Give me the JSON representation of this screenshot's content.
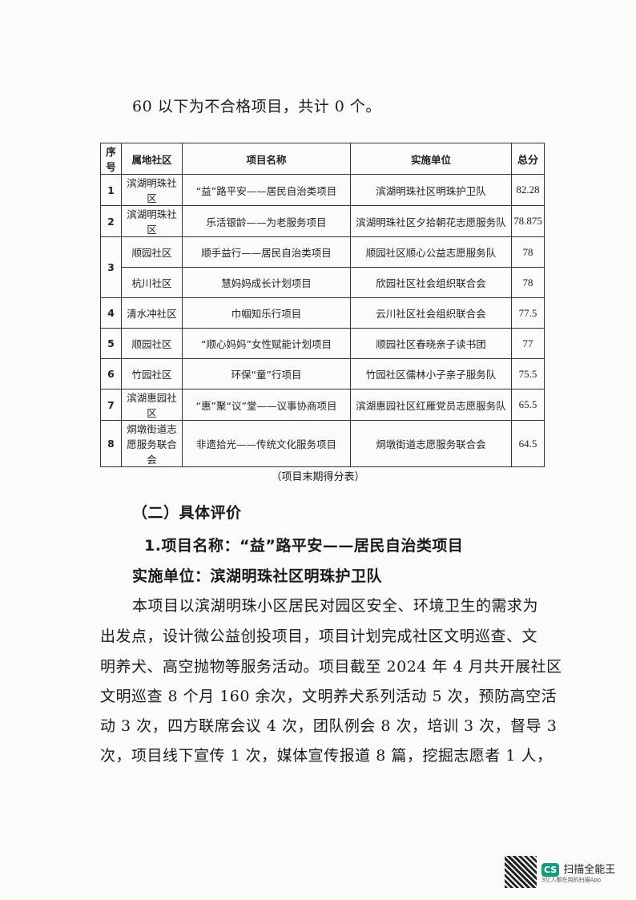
{
  "intro": "60 以下为不合格项目，共计 0 个。",
  "table": {
    "headers": [
      "序号",
      "属地社区",
      "项目名称",
      "实施单位",
      "总分"
    ],
    "rows": [
      {
        "no": "1",
        "community": "滨湖明珠社区",
        "project": "“益”路平安——居民自治类项目",
        "unit": "滨湖明珠社区明珠护卫队",
        "score": "82.28"
      },
      {
        "no": "2",
        "community": "滨湖明珠社区",
        "project": "乐活银龄——为老服务项目",
        "unit": "滨湖明珠社区夕拾朝花志愿服务队",
        "score": "78.875"
      },
      {
        "no": "3",
        "community": "顺园社区",
        "project": "顺手益行——居民自治类项目",
        "unit": "顺园社区顺心公益志愿服务队",
        "score": "78"
      },
      {
        "no": "",
        "community": "杭川社区",
        "project": "慧妈妈成长计划项目",
        "unit": "欣园社区社会组织联合会",
        "score": "78"
      },
      {
        "no": "4",
        "community": "清水冲社区",
        "project": "巾帼知乐行项目",
        "unit": "云川社区社会组织联合会",
        "score": "77.5"
      },
      {
        "no": "5",
        "community": "顺园社区",
        "project": "“顺心妈妈”女性赋能计划项目",
        "unit": "顺园社区春晓亲子读书团",
        "score": "77"
      },
      {
        "no": "6",
        "community": "竹园社区",
        "project": "环保“童”行项目",
        "unit": "竹园社区儒林小子亲子服务队",
        "score": "75.5"
      },
      {
        "no": "7",
        "community": "滨湖惠园社区",
        "project": "“惠”聚“议”堂——议事协商项目",
        "unit": "滨湖惠园社区红雁党员志愿服务队",
        "score": "65.5"
      },
      {
        "no": "8",
        "community": "烔墩街道志愿服务联合会",
        "project": "非遗拾光——传统文化服务项目",
        "unit": "烔墩街道志愿服务联合会",
        "score": "64.5"
      }
    ],
    "caption": "（项目末期得分表）"
  },
  "section": "（二）具体评价",
  "item_title": "1.项目名称：“益”路平安——居民自治类项目",
  "unit_line": "实施单位：滨湖明珠社区明珠护卫队",
  "paragraph": [
    "本项目以滨湖明珠小区居民对园区安全、环境卫生的需求为",
    "出发点，设计微公益创投项目，项目计划完成社区文明巡查、文",
    "明养犬、高空抛物等服务活动。项目截至 2024 年 4 月共开展社区",
    "文明巡查 8 个月 160 余次，文明养犬系列活动 5 次，预防高空活",
    "动 3 次，四方联席会议 4 次，团队例会 8 次，培训 3 次，督导 3",
    "次，项目线下宣传 1 次，媒体宣传报道 8 篇，挖掘志愿者 1 人，"
  ],
  "watermark": {
    "logo": "CS",
    "name": "扫描全能王",
    "slogan": "3亿人都在用的扫描App",
    "brand_color": "#1a9a7c"
  }
}
